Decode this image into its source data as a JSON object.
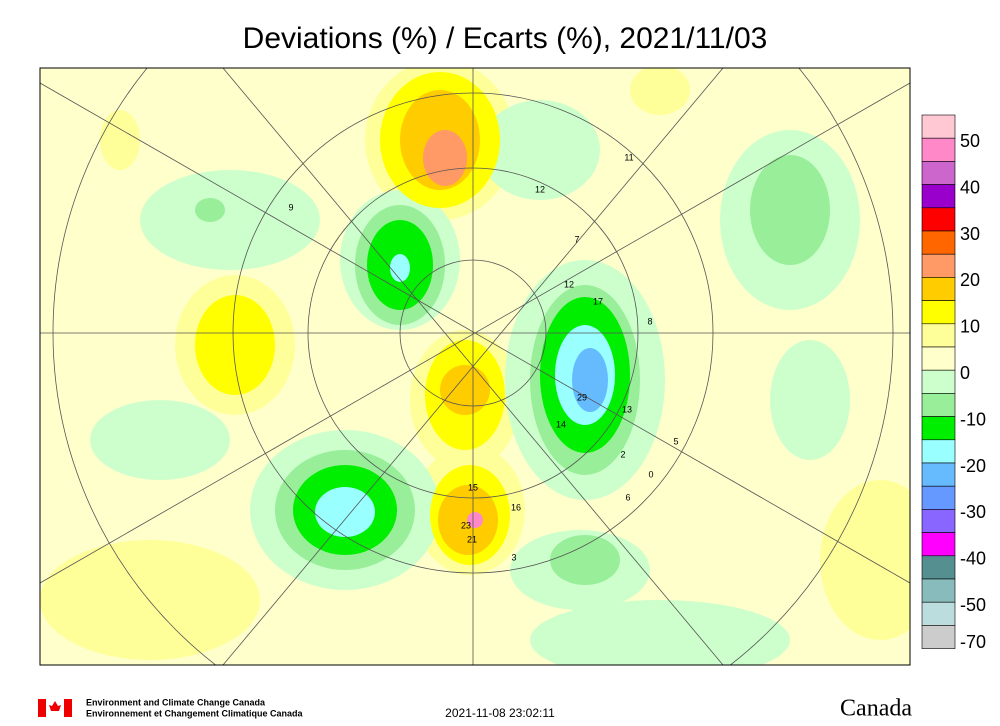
{
  "header": {
    "title": "Deviations (%) / Ecarts (%), 2021/11/03"
  },
  "legend": {
    "ticks": [
      50,
      40,
      30,
      20,
      10,
      0,
      -10,
      -20,
      -30,
      -40,
      -50,
      -70
    ],
    "colors": [
      "#ffc8d2",
      "#ff88c8",
      "#cc66cc",
      "#9900cc",
      "#ff0000",
      "#ff6600",
      "#ff9966",
      "#ffcc00",
      "#ffff00",
      "#ffff99",
      "#ffffcc",
      "#ccffcc",
      "#99ee99",
      "#00ee00",
      "#99ffff",
      "#66bbff",
      "#6699ff",
      "#8866ff",
      "#ff00ff",
      "#558f8f",
      "#88bbbb",
      "#bbdddd",
      "#cccccc"
    ]
  },
  "map": {
    "station_labels": [
      "15",
      "23",
      "21",
      "16",
      "12",
      "17",
      "13",
      "29",
      "14",
      "8",
      "7",
      "3",
      "2",
      "6",
      "0",
      "5",
      "11",
      "9",
      "12"
    ]
  },
  "footer": {
    "agency_en": "Environment and Climate Change Canada",
    "agency_fr": "Environnement et Changement Climatique Canada",
    "timestamp": "2021-11-08 23:02:11",
    "wordmark": "Canada"
  }
}
